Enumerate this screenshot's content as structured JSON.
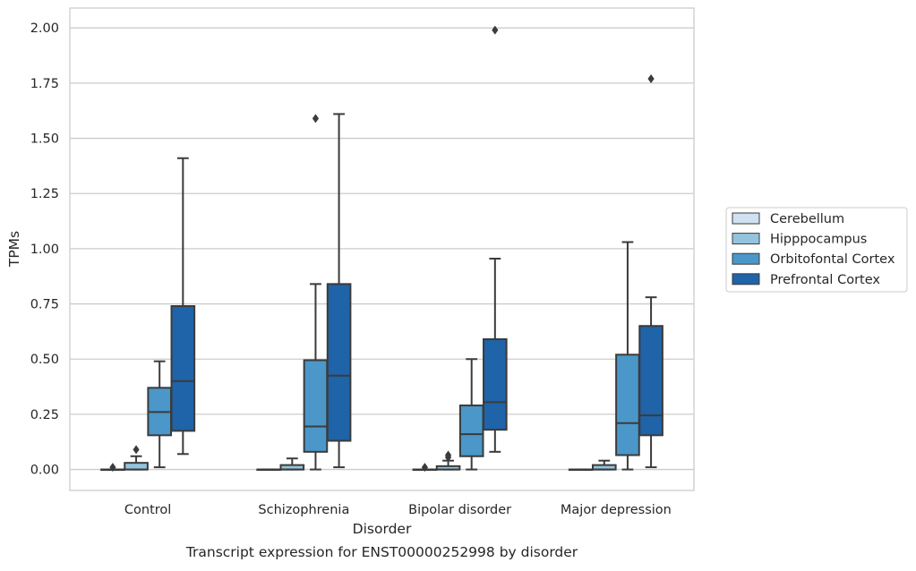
{
  "chart_data": {
    "type": "box",
    "caption": "Transcript expression for ENST00000252998 by disorder",
    "xlabel": "Disorder",
    "ylabel": "TPMs",
    "ylim": [
      -0.095,
      2.09
    ],
    "yticks": [
      0.0,
      0.25,
      0.5,
      0.75,
      1.0,
      1.25,
      1.5,
      1.75,
      2.0
    ],
    "ytick_labels": [
      "0.00",
      "0.25",
      "0.50",
      "0.75",
      "1.00",
      "1.25",
      "1.50",
      "1.75",
      "2.00"
    ],
    "grid": true,
    "legend_position": "right",
    "categories": [
      "Control",
      "Schizophrenia",
      "Bipolar disorder",
      "Major depression"
    ],
    "series": [
      {
        "name": "Cerebellum",
        "color": "#cfe1f2",
        "boxes": [
          {
            "whisker_low": 0.0,
            "q1": 0.0,
            "median": 0.0,
            "q3": 0.0,
            "whisker_high": 0.0,
            "outliers": [
              0.01
            ]
          },
          {
            "whisker_low": 0.0,
            "q1": 0.0,
            "median": 0.0,
            "q3": 0.0,
            "whisker_high": 0.0,
            "outliers": []
          },
          {
            "whisker_low": 0.0,
            "q1": 0.0,
            "median": 0.0,
            "q3": 0.0,
            "whisker_high": 0.0,
            "outliers": [
              0.01
            ]
          },
          {
            "whisker_low": 0.0,
            "q1": 0.0,
            "median": 0.0,
            "q3": 0.0,
            "whisker_high": 0.0,
            "outliers": []
          }
        ]
      },
      {
        "name": "Hipppocampus",
        "color": "#93c4de",
        "boxes": [
          {
            "whisker_low": 0.0,
            "q1": 0.0,
            "median": 0.0,
            "q3": 0.03,
            "whisker_high": 0.06,
            "outliers": [
              0.09
            ]
          },
          {
            "whisker_low": 0.0,
            "q1": 0.0,
            "median": 0.0,
            "q3": 0.02,
            "whisker_high": 0.05,
            "outliers": []
          },
          {
            "whisker_low": 0.0,
            "q1": 0.0,
            "median": 0.0,
            "q3": 0.015,
            "whisker_high": 0.04,
            "outliers": [
              0.055,
              0.065
            ]
          },
          {
            "whisker_low": 0.0,
            "q1": 0.0,
            "median": 0.0,
            "q3": 0.02,
            "whisker_high": 0.04,
            "outliers": []
          }
        ]
      },
      {
        "name": "Orbitofontal Cortex",
        "color": "#4b97c9",
        "boxes": [
          {
            "whisker_low": 0.01,
            "q1": 0.155,
            "median": 0.26,
            "q3": 0.37,
            "whisker_high": 0.49,
            "outliers": []
          },
          {
            "whisker_low": 0.0,
            "q1": 0.08,
            "median": 0.195,
            "q3": 0.495,
            "whisker_high": 0.84,
            "outliers": [
              1.59
            ]
          },
          {
            "whisker_low": 0.0,
            "q1": 0.06,
            "median": 0.16,
            "q3": 0.29,
            "whisker_high": 0.5,
            "outliers": []
          },
          {
            "whisker_low": 0.0,
            "q1": 0.065,
            "median": 0.21,
            "q3": 0.52,
            "whisker_high": 1.03,
            "outliers": []
          }
        ]
      },
      {
        "name": "Prefrontal Cortex",
        "color": "#1f63a8",
        "boxes": [
          {
            "whisker_low": 0.07,
            "q1": 0.175,
            "median": 0.4,
            "q3": 0.74,
            "whisker_high": 1.41,
            "outliers": []
          },
          {
            "whisker_low": 0.01,
            "q1": 0.13,
            "median": 0.425,
            "q3": 0.84,
            "whisker_high": 1.61,
            "outliers": []
          },
          {
            "whisker_low": 0.08,
            "q1": 0.18,
            "median": 0.305,
            "q3": 0.59,
            "whisker_high": 0.955,
            "outliers": [
              1.99
            ]
          },
          {
            "whisker_low": 0.01,
            "q1": 0.155,
            "median": 0.245,
            "q3": 0.65,
            "whisker_high": 0.78,
            "outliers": [
              1.77
            ]
          }
        ]
      }
    ]
  }
}
